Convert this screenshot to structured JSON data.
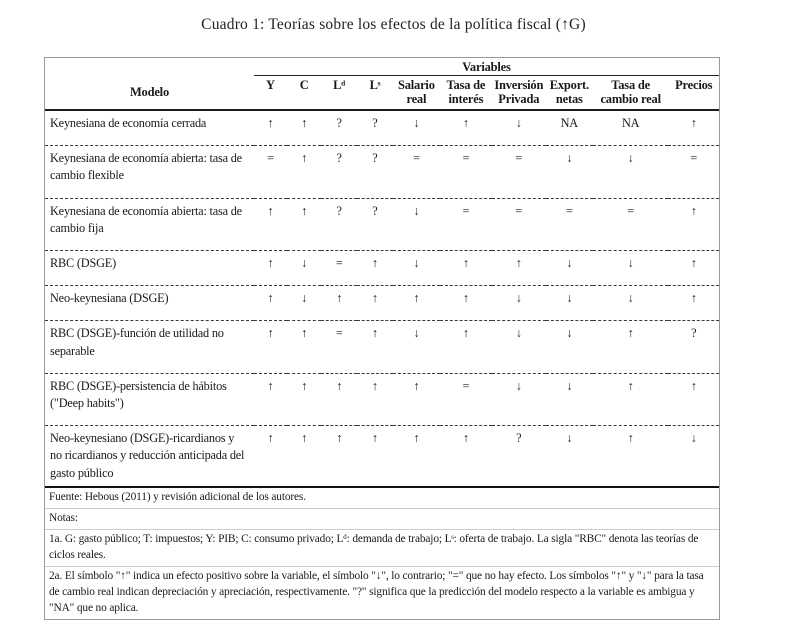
{
  "title": "Cuadro 1: Teorías sobre los efectos de la política fiscal (↑G)",
  "table": {
    "variables_label": "Variables",
    "model_header": "Modelo",
    "columns": [
      "Y",
      "C",
      "Lᵈ",
      "Lˢ",
      "Salario real",
      "Tasa de interés",
      "Inversión Privada",
      "Export. netas",
      "Tasa de cambio real",
      "Precios"
    ],
    "rows": [
      {
        "model": "Keynesiana de economía cerrada",
        "values": [
          "↑",
          "↑",
          "?",
          "?",
          "↓",
          "↑",
          "↓",
          "NA",
          "NA",
          "↑"
        ]
      },
      {
        "model": "Keynesiana de economía abierta: tasa de cambio flexible",
        "values": [
          "=",
          "↑",
          "?",
          "?",
          "=",
          "=",
          "=",
          "↓",
          "↓",
          "="
        ]
      },
      {
        "model": "Keynesiana de economía abierta: tasa de cambio fija",
        "values": [
          "↑",
          "↑",
          "?",
          "?",
          "↓",
          "=",
          "=",
          "=",
          "=",
          "↑"
        ]
      },
      {
        "model": "RBC (DSGE)",
        "values": [
          "↑",
          "↓",
          "=",
          "↑",
          "↓",
          "↑",
          "↑",
          "↓",
          "↓",
          "↑"
        ]
      },
      {
        "model": "Neo-keynesiana (DSGE)",
        "values": [
          "↑",
          "↓",
          "↑",
          "↑",
          "↑",
          "↑",
          "↓",
          "↓",
          "↓",
          "↑"
        ]
      },
      {
        "model": "RBC (DSGE)-función de utilidad no separable",
        "values": [
          "↑",
          "↑",
          "=",
          "↑",
          "↓",
          "↑",
          "↓",
          "↓",
          "↑",
          "?"
        ]
      },
      {
        "model": "RBC (DSGE)-persistencia de hábitos (\"Deep habits\")",
        "values": [
          "↑",
          "↑",
          "↑",
          "↑",
          "↑",
          "=",
          "↓",
          "↓",
          "↑",
          "↑"
        ]
      },
      {
        "model": "Neo-keynesiano (DSGE)-ricardianos y no ricardianos y reducción anticipada del gasto público",
        "values": [
          "↑",
          "↑",
          "↑",
          "↑",
          "↑",
          "↑",
          "?",
          "↓",
          "↑",
          "↓"
        ]
      }
    ]
  },
  "footer": {
    "fuente": "Fuente: Hebous (2011) y revisión adicional de los autores.",
    "notas_label": "Notas:",
    "note_1a": "1a. G: gasto público; T: impuestos; Y: PIB; C: consumo privado; Lᵈ: demanda de trabajo; Lˢ: oferta de trabajo. La sigla \"RBC\" denota las teorías de ciclos reales.",
    "note_2a": "2a. El símbolo \"↑\" indica un efecto positivo sobre la variable, el símbolo \"↓\", lo contrario; \"=\" que no hay efecto. Los símbolos \"↑\" y \"↓\" para la tasa de cambio real indican depreciación y apreciación, respectivamente. \"?\" significa que la predicción del modelo respecto a la variable es ambigua y \"NA\" que no aplica."
  }
}
